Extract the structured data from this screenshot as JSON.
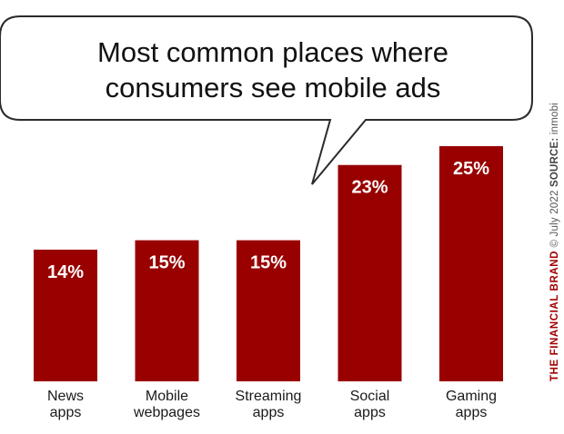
{
  "colors": {
    "bar": "#990000",
    "bar_label": "#ffffff",
    "brand": "#a00000",
    "bubble_stroke": "#2b2b2b"
  },
  "chart_data": {
    "type": "bar",
    "title_lines": [
      "Most common places where",
      "consumers see mobile ads"
    ],
    "categories": [
      [
        "News",
        "apps"
      ],
      [
        "Mobile",
        "webpages"
      ],
      [
        "Streaming",
        "apps"
      ],
      [
        "Social",
        "apps"
      ],
      [
        "Gaming",
        "apps"
      ]
    ],
    "values": [
      14,
      15,
      15,
      23,
      25
    ],
    "value_labels": [
      "14%",
      "15%",
      "15%",
      "23%",
      "25%"
    ],
    "ylim": [
      0,
      25
    ],
    "grid": false,
    "legend": "none"
  },
  "credit": {
    "brand": "THE FINANCIAL BRAND",
    "date": "© July 2022",
    "source_label": "SOURCE:",
    "source": "inmobi"
  }
}
